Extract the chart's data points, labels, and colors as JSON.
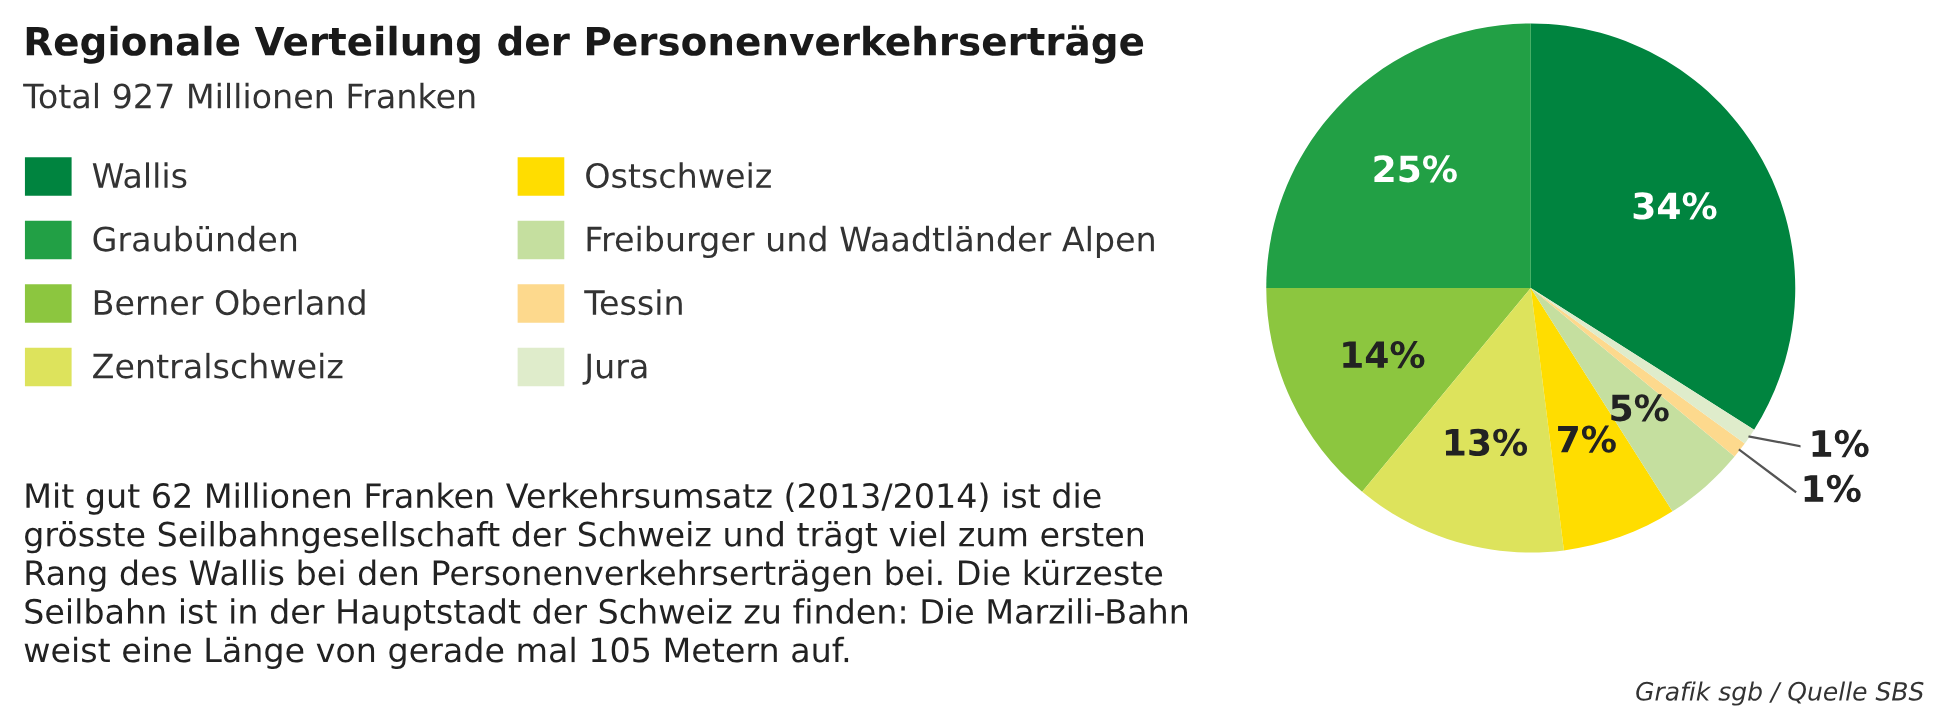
{
  "chart_data": {
    "type": "pie",
    "title": "Regionale Verteilung der Personenverkehrserträge",
    "subtitle": "Total 927 Millionen Franken",
    "categories": [
      "Wallis",
      "Graubünden",
      "Berner Oberland",
      "Zentralschweiz",
      "Ostschweiz",
      "Freiburger und Waadtländer Alpen",
      "Tessin",
      "Jura"
    ],
    "values": [
      34,
      25,
      14,
      13,
      7,
      5,
      1,
      1
    ],
    "value_labels": [
      "34%",
      "25%",
      "14%",
      "13%",
      "7%",
      "5%",
      "1%",
      "1%"
    ],
    "colors": [
      "#00843f",
      "#22a045",
      "#8cc63f",
      "#dde35c",
      "#ffdd00",
      "#c5df9f",
      "#fdd98d",
      "#dfeccb"
    ],
    "legend": "top left",
    "annotations": [
      "Mit gut 62 Millionen Franken Verkehrsumsatz (2013/2014) ist die\ngrösste Seilbahngesellschaft der Schweiz und trägt viel zum ersten\nRang des Wallis bei den Personenverkehrserträgen bei. Die kürzeste\nSeilbahn ist in der Hauptstadt der Schweiz zu finden: Die Marzili-Bahn\nweist eine Länge von gerade mal 105 Metern auf.",
      "Grafik sgb / Quelle SBS"
    ]
  }
}
